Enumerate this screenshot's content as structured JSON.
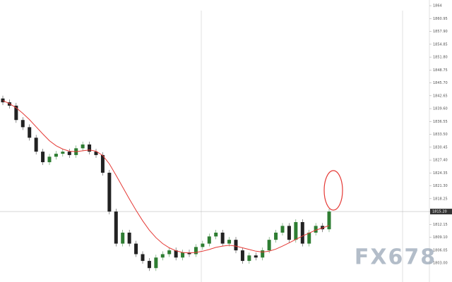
{
  "chart_data": {
    "type": "candlestick",
    "watermark": "FX678",
    "up_color": "#2e7d32",
    "down_color": "#222222",
    "ma_color": "#e53935",
    "open": [
      1842.0,
      1841.1,
      1840.3,
      1836.9,
      1835.2,
      1832.7,
      1829.4,
      1826.9,
      1828.2,
      1828.9,
      1829.4,
      1828.6,
      1830.2,
      1831.1,
      1829.4,
      1828.6,
      1824.4,
      1815.2,
      1807.6,
      1810.2,
      1807.6,
      1805.1,
      1803.5,
      1801.8,
      1804.3,
      1805.1,
      1806.0,
      1804.3,
      1805.5,
      1805.1,
      1806.8,
      1807.6,
      1809.3,
      1810.2,
      1807.6,
      1808.5,
      1806.0,
      1803.5,
      1804.8,
      1804.3,
      1806.0,
      1808.5,
      1810.2,
      1811.8,
      1808.5,
      1812.7,
      1807.6,
      1810.2,
      1811.8,
      1811.0
    ],
    "close": [
      1841.1,
      1840.3,
      1836.9,
      1835.2,
      1832.7,
      1829.4,
      1826.9,
      1828.2,
      1828.9,
      1829.4,
      1828.6,
      1830.2,
      1831.1,
      1829.4,
      1828.6,
      1824.4,
      1815.2,
      1807.6,
      1810.2,
      1807.6,
      1805.1,
      1803.5,
      1801.8,
      1804.3,
      1805.1,
      1806.0,
      1804.3,
      1805.5,
      1805.1,
      1806.8,
      1807.6,
      1809.3,
      1810.2,
      1807.6,
      1808.5,
      1806.0,
      1803.5,
      1804.8,
      1804.3,
      1806.0,
      1808.5,
      1810.2,
      1811.8,
      1808.5,
      1812.7,
      1807.6,
      1810.2,
      1811.8,
      1811.0,
      1815.2
    ],
    "moving_average": [
      1841.5,
      1840.8,
      1839.8,
      1838.5,
      1837.0,
      1835.3,
      1833.6,
      1832.0,
      1830.8,
      1830.0,
      1829.5,
      1829.4,
      1829.6,
      1829.8,
      1829.5,
      1828.5,
      1826.5,
      1823.8,
      1821.0,
      1818.2,
      1815.5,
      1813.0,
      1810.8,
      1809.0,
      1807.6,
      1806.6,
      1805.9,
      1805.5,
      1805.4,
      1805.5,
      1805.8,
      1806.2,
      1806.7,
      1807.0,
      1807.2,
      1807.0,
      1806.6,
      1806.2,
      1805.8,
      1805.6,
      1805.8,
      1806.3,
      1807.0,
      1807.8,
      1808.6,
      1809.4,
      1810.1,
      1810.8,
      1811.3,
      1811.9
    ],
    "last_price": {
      "value": 1815.2,
      "label": "1815.20"
    },
    "ylim": [
      1798.5,
      1865.35
    ],
    "yticks": [
      {
        "value": 1803.0,
        "label": "1803.00"
      },
      {
        "value": 1806.05,
        "label": "1806.05"
      },
      {
        "value": 1809.1,
        "label": "1809.10"
      },
      {
        "value": 1812.15,
        "label": "1812.15"
      },
      {
        "value": 1815.2,
        "label": "1815.20"
      },
      {
        "value": 1818.25,
        "label": "1818.25"
      },
      {
        "value": 1821.3,
        "label": "1821.30"
      },
      {
        "value": 1824.35,
        "label": "1824.35"
      },
      {
        "value": 1827.4,
        "label": "1827.40"
      },
      {
        "value": 1830.45,
        "label": "1830.45"
      },
      {
        "value": 1833.5,
        "label": "1833.50"
      },
      {
        "value": 1836.55,
        "label": "1836.55"
      },
      {
        "value": 1839.6,
        "label": "1839.60"
      },
      {
        "value": 1842.65,
        "label": "1842.65"
      },
      {
        "value": 1845.7,
        "label": "1845.70"
      },
      {
        "value": 1848.75,
        "label": "1848.75"
      },
      {
        "value": 1851.8,
        "label": "1851.80"
      },
      {
        "value": 1854.85,
        "label": "1854.85"
      },
      {
        "value": 1857.9,
        "label": "1857.90"
      },
      {
        "value": 1860.95,
        "label": "1860.95"
      },
      1864
    ]
  }
}
